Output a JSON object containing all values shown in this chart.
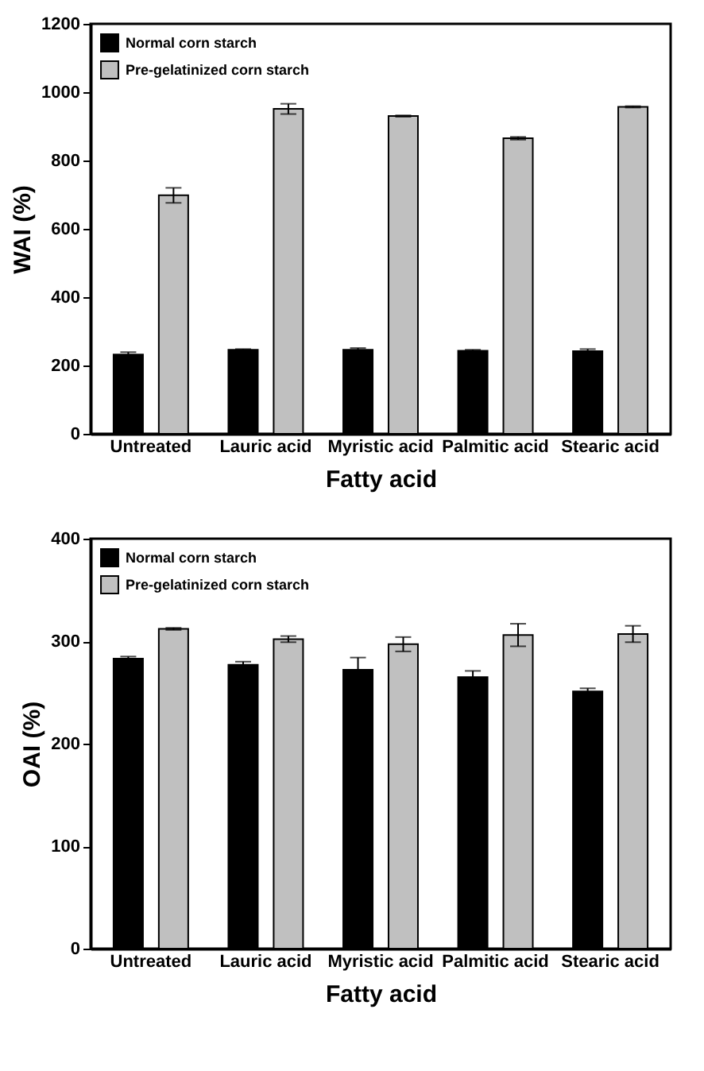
{
  "chart_data": [
    {
      "type": "bar",
      "xlabel": "Fatty acid",
      "ylabel": "WAI (%)",
      "categories": [
        "Untreated",
        "Lauric acid",
        "Myristic acid",
        "Palmitic acid",
        "Stearic acid"
      ],
      "ylim": [
        0,
        1200
      ],
      "yticks": [
        0,
        200,
        400,
        600,
        800,
        1000,
        1200
      ],
      "grid": false,
      "legend": "top left",
      "series": [
        {
          "name": "Normal corn starch",
          "color": "#000000",
          "values": [
            232,
            246,
            246,
            243,
            242
          ],
          "errors": [
            7,
            2,
            5,
            3,
            6
          ]
        },
        {
          "name": "Pre-gelatinized corn starch",
          "color": "#c0c0c0",
          "values": [
            698,
            951,
            930,
            865,
            957
          ],
          "errors": [
            22,
            15,
            2,
            4,
            2
          ]
        }
      ]
    },
    {
      "type": "bar",
      "xlabel": "Fatty acid",
      "ylabel": "OAI (%)",
      "categories": [
        "Untreated",
        "Lauric acid",
        "Myristic acid",
        "Palmitic acid",
        "Stearic acid"
      ],
      "ylim": [
        0,
        400
      ],
      "yticks": [
        0,
        100,
        200,
        300,
        400
      ],
      "grid": false,
      "legend": "top left",
      "series": [
        {
          "name": "Normal corn starch",
          "color": "#000000",
          "values": [
            283,
            277,
            272,
            265,
            251
          ],
          "errors": [
            2,
            3,
            12,
            6,
            3
          ]
        },
        {
          "name": "Pre-gelatinized corn starch",
          "color": "#c0c0c0",
          "values": [
            312,
            302,
            297,
            306,
            307
          ],
          "errors": [
            1,
            3,
            7,
            11,
            8
          ]
        }
      ]
    }
  ]
}
